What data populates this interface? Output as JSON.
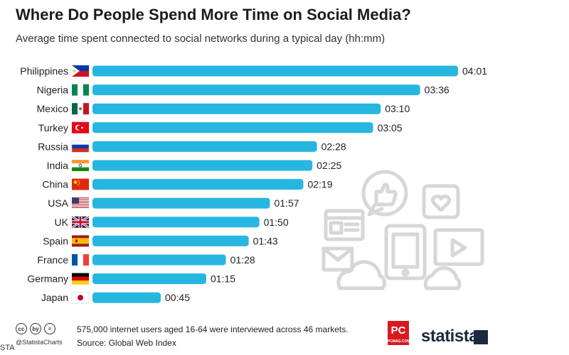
{
  "header": {
    "title": "Where Do People Spend More Time on Social Media?",
    "subtitle": "Average time spent connected to social networks during a typical day (hh:mm)"
  },
  "chart_data": {
    "type": "bar",
    "orientation": "horizontal",
    "title": "Where Do People Spend More Time on Social Media?",
    "subtitle": "Average time spent connected to social networks during a typical day (hh:mm)",
    "xlabel": "",
    "ylabel": "",
    "unit": "minutes",
    "categories": [
      "Philippines",
      "Nigeria",
      "Mexico",
      "Turkey",
      "Russia",
      "India",
      "China",
      "USA",
      "UK",
      "Spain",
      "France",
      "Germany",
      "Japan"
    ],
    "values": [
      241,
      216,
      190,
      185,
      148,
      145,
      139,
      117,
      110,
      103,
      88,
      75,
      45
    ],
    "value_labels": [
      "04:01",
      "03:36",
      "03:10",
      "03:05",
      "02:28",
      "02:25",
      "02:19",
      "01:57",
      "01:50",
      "01:43",
      "01:28",
      "01:15",
      "00:45"
    ],
    "xlim": [
      0,
      241
    ],
    "grid": false,
    "legend": "none",
    "bar_color": "#27b6e0"
  },
  "footer": {
    "note": "575,000 internet users aged 16-64 were interviewed across 46 markets.",
    "source": "Source: Global Web Index",
    "handle": "@StatistaCharts",
    "cc_icons": [
      "cc",
      "by",
      "="
    ],
    "edge_text": "STA"
  },
  "logos": {
    "pc": "PC",
    "pc_sub": "PCMAG.COM",
    "statista": "statista"
  }
}
